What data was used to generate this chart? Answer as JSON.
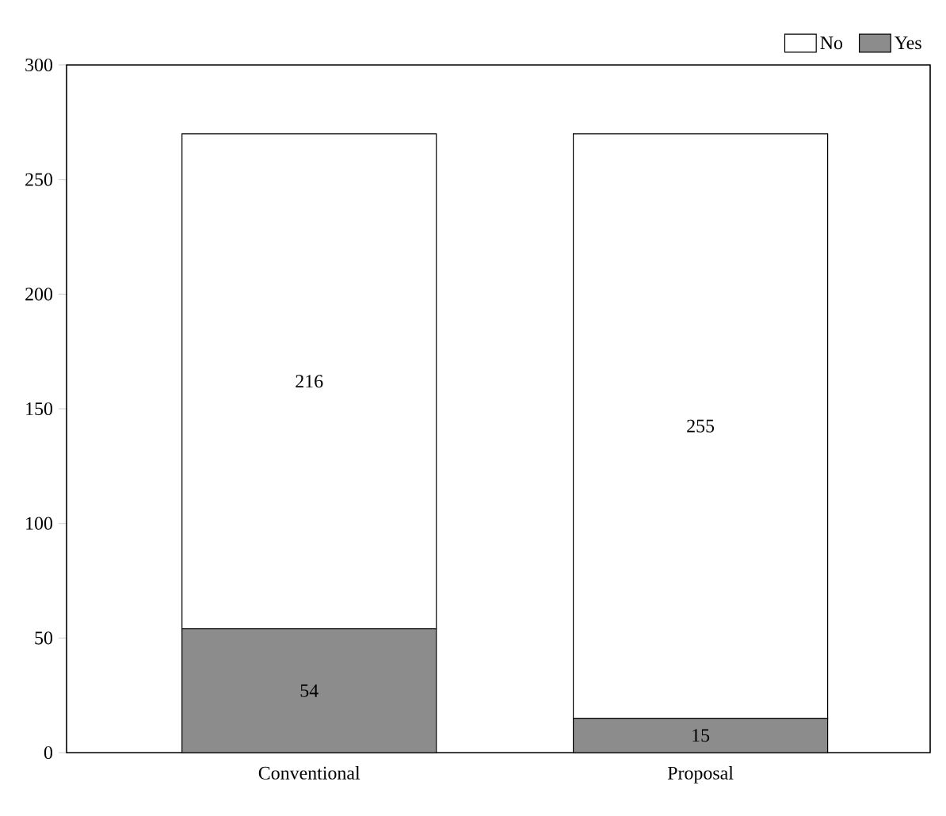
{
  "chart_data": {
    "type": "bar",
    "stacked": true,
    "categories": [
      "Conventional",
      "Proposal"
    ],
    "series": [
      {
        "name": "Yes",
        "color": "#8c8c8c",
        "values": [
          54,
          15
        ]
      },
      {
        "name": "No",
        "color": "#ffffff",
        "values": [
          216,
          255
        ]
      }
    ],
    "ylim": [
      0,
      300
    ],
    "yticks": [
      0,
      50,
      100,
      150,
      200,
      250,
      300
    ],
    "data_labels": true,
    "legend": "top right",
    "grid": false
  }
}
